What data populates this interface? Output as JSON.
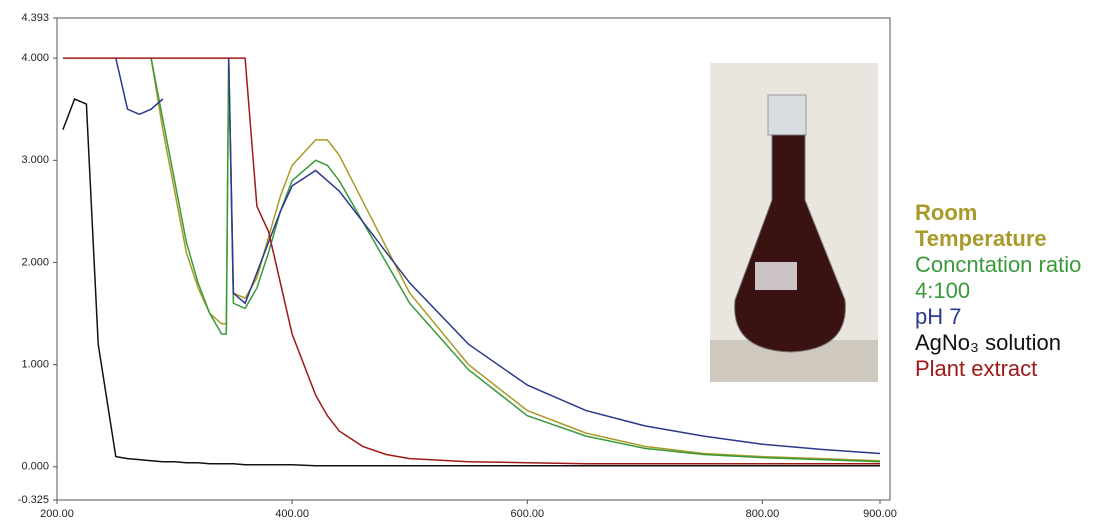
{
  "chart_data": {
    "type": "line",
    "x": [
      205,
      215,
      225,
      235,
      250,
      260,
      270,
      280,
      290,
      300,
      310,
      320,
      330,
      340,
      344,
      346,
      350,
      360,
      370,
      380,
      390,
      400,
      420,
      430,
      440,
      460,
      480,
      500,
      550,
      600,
      650,
      700,
      750,
      800,
      850,
      900
    ],
    "series": [
      {
        "name": "Room Temperature",
        "color": "#a89a28",
        "values": [
          null,
          null,
          null,
          null,
          null,
          null,
          null,
          4.0,
          3.3,
          2.7,
          2.1,
          1.75,
          1.5,
          1.4,
          1.4,
          4.0,
          1.7,
          1.65,
          1.85,
          2.25,
          2.65,
          2.95,
          3.2,
          3.2,
          3.05,
          2.6,
          2.15,
          1.7,
          1.0,
          0.55,
          0.33,
          0.2,
          0.13,
          0.1,
          0.08,
          0.06
        ]
      },
      {
        "name": "Concntation ratio 4:100",
        "color": "#3a9a3a",
        "values": [
          null,
          null,
          null,
          null,
          null,
          null,
          null,
          4.0,
          3.4,
          2.8,
          2.2,
          1.8,
          1.5,
          1.3,
          1.3,
          4.0,
          1.6,
          1.55,
          1.75,
          2.1,
          2.5,
          2.8,
          3.0,
          2.95,
          2.8,
          2.4,
          2.0,
          1.6,
          0.95,
          0.5,
          0.3,
          0.18,
          0.12,
          0.09,
          0.07,
          0.05
        ]
      },
      {
        "name": "pH 7",
        "color": "#2b3a8c",
        "values": [
          null,
          null,
          null,
          null,
          4.0,
          3.5,
          3.45,
          3.5,
          3.6,
          null,
          null,
          null,
          null,
          null,
          null,
          4.0,
          1.7,
          1.6,
          1.9,
          2.2,
          2.5,
          2.75,
          2.9,
          2.8,
          2.7,
          2.4,
          2.1,
          1.8,
          1.2,
          0.8,
          0.55,
          0.4,
          0.3,
          0.22,
          0.17,
          0.13
        ]
      },
      {
        "name": "AgNo₃ solution",
        "color": "#111111",
        "values": [
          3.3,
          3.6,
          3.55,
          1.2,
          0.1,
          0.08,
          0.07,
          0.06,
          0.05,
          0.05,
          0.04,
          0.04,
          0.03,
          0.03,
          0.03,
          0.03,
          0.03,
          0.02,
          0.02,
          0.02,
          0.02,
          0.02,
          0.01,
          0.01,
          0.01,
          0.01,
          0.01,
          0.01,
          0.01,
          0.01,
          0.01,
          0.01,
          0.01,
          0.01,
          0.01,
          0.01
        ]
      },
      {
        "name": "Plant extract",
        "color": "#a01818",
        "values": [
          4.0,
          4.0,
          4.0,
          4.0,
          4.0,
          4.0,
          4.0,
          4.0,
          4.0,
          4.0,
          4.0,
          4.0,
          4.0,
          4.0,
          4.0,
          4.0,
          4.0,
          4.0,
          2.55,
          2.3,
          1.8,
          1.3,
          0.7,
          0.5,
          0.35,
          0.2,
          0.12,
          0.08,
          0.05,
          0.04,
          0.03,
          0.03,
          0.03,
          0.03,
          0.03,
          0.03
        ]
      }
    ],
    "xlim": [
      200,
      900
    ],
    "ylim": [
      -0.325,
      4.393
    ],
    "xticks": [
      {
        "value": 200,
        "label": "200.00"
      },
      {
        "value": 400,
        "label": "400.00"
      },
      {
        "value": 600,
        "label": "600.00"
      },
      {
        "value": 800,
        "label": "800.00"
      },
      {
        "value": 900,
        "label": "900.00"
      }
    ],
    "yticks": [
      -0.325,
      {
        "value": 0,
        "label": "0.000"
      },
      {
        "value": 1,
        "label": "1.000"
      },
      {
        "value": 2,
        "label": "2.000"
      },
      {
        "value": 3,
        "label": "3.000"
      },
      {
        "value": 4,
        "label": "4.000"
      },
      4.393
    ]
  }
}
